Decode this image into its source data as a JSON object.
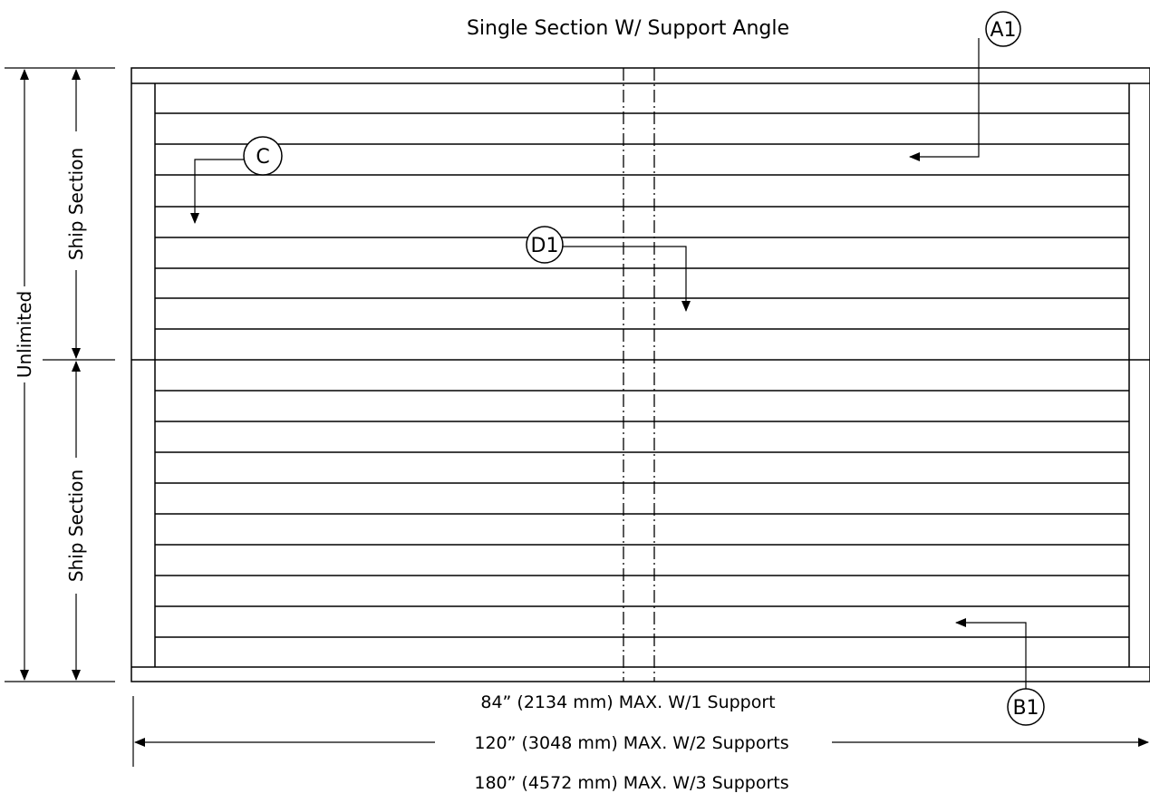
{
  "title": "Single Section W/ Support Angle",
  "callouts": {
    "a1": "A1",
    "b1": "B1",
    "c": "C",
    "d1": "D1"
  },
  "dimensions": {
    "overall_height": "Unlimited",
    "upper_section": "Ship Section",
    "lower_section": "Ship Section",
    "width_1_support": "84” (2134 mm) MAX. W/1 Support",
    "width_2_supports": "120” (3048 mm) MAX. W/2 Supports",
    "width_3_supports": "180” (4572 mm) MAX. W/3 Supports"
  }
}
